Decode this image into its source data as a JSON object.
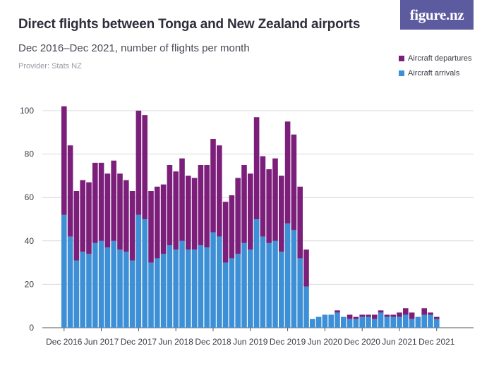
{
  "header": {
    "title": "Direct flights between Tonga and New Zealand airports",
    "subtitle": "Dec 2016–Dec 2021, number of flights per month",
    "provider": "Provider: Stats NZ",
    "brand": "figure.nz"
  },
  "chart_data": {
    "type": "bar",
    "stacked": true,
    "categories": [
      "Dec 2016",
      "Jan 2017",
      "Feb 2017",
      "Mar 2017",
      "Apr 2017",
      "May 2017",
      "Jun 2017",
      "Jul 2017",
      "Aug 2017",
      "Sep 2017",
      "Oct 2017",
      "Nov 2017",
      "Dec 2017",
      "Jan 2018",
      "Feb 2018",
      "Mar 2018",
      "Apr 2018",
      "May 2018",
      "Jun 2018",
      "Jul 2018",
      "Aug 2018",
      "Sep 2018",
      "Oct 2018",
      "Nov 2018",
      "Dec 2018",
      "Jan 2019",
      "Feb 2019",
      "Mar 2019",
      "Apr 2019",
      "May 2019",
      "Jun 2019",
      "Jul 2019",
      "Aug 2019",
      "Sep 2019",
      "Oct 2019",
      "Nov 2019",
      "Dec 2019",
      "Jan 2020",
      "Feb 2020",
      "Mar 2020",
      "Apr 2020",
      "May 2020",
      "Jun 2020",
      "Jul 2020",
      "Aug 2020",
      "Sep 2020",
      "Oct 2020",
      "Nov 2020",
      "Dec 2020",
      "Jan 2021",
      "Feb 2021",
      "Mar 2021",
      "Apr 2021",
      "May 2021",
      "Jun 2021",
      "Jul 2021",
      "Aug 2021",
      "Sep 2021",
      "Oct 2021",
      "Nov 2021",
      "Dec 2021"
    ],
    "tick_labels": [
      "Dec 2016",
      "Jun 2017",
      "Dec 2017",
      "Jun 2018",
      "Dec 2018",
      "Jun 2019",
      "Dec 2019",
      "Jun 2020",
      "Dec 2020",
      "Jun 2021",
      "Dec 2021"
    ],
    "tick_label_index": [
      0,
      6,
      12,
      18,
      24,
      30,
      36,
      42,
      48,
      54,
      60
    ],
    "series": [
      {
        "name": "Aircraft arrivals",
        "color": "#3d8fd6",
        "values": [
          52,
          42,
          31,
          35,
          34,
          39,
          40,
          37,
          40,
          36,
          35,
          31,
          52,
          50,
          30,
          32,
          34,
          38,
          36,
          40,
          36,
          36,
          38,
          37,
          44,
          42,
          30,
          32,
          34,
          39,
          36,
          50,
          42,
          39,
          40,
          35,
          48,
          45,
          32,
          19,
          4,
          5,
          6,
          6,
          7,
          5,
          4,
          4,
          5,
          5,
          4,
          7,
          5,
          5,
          5,
          6,
          4,
          5,
          6,
          6,
          4
        ]
      },
      {
        "name": "Aircraft departures",
        "color": "#7b1f7a",
        "values": [
          50,
          42,
          32,
          33,
          33,
          37,
          36,
          34,
          37,
          35,
          33,
          32,
          48,
          48,
          33,
          33,
          32,
          37,
          36,
          38,
          34,
          33,
          37,
          38,
          43,
          42,
          28,
          29,
          35,
          36,
          35,
          47,
          37,
          34,
          38,
          35,
          47,
          44,
          33,
          17,
          0,
          0,
          0,
          0,
          1,
          0,
          2,
          1,
          1,
          1,
          2,
          1,
          1,
          1,
          2,
          3,
          3,
          0,
          3,
          1,
          1
        ]
      }
    ],
    "yaxis": {
      "ticks": [
        0,
        20,
        40,
        60,
        80,
        100
      ],
      "ylim": [
        0,
        100
      ]
    },
    "legend": {
      "placement": "top-right",
      "items": [
        "Aircraft departures",
        "Aircraft arrivals"
      ]
    },
    "grid": true
  }
}
